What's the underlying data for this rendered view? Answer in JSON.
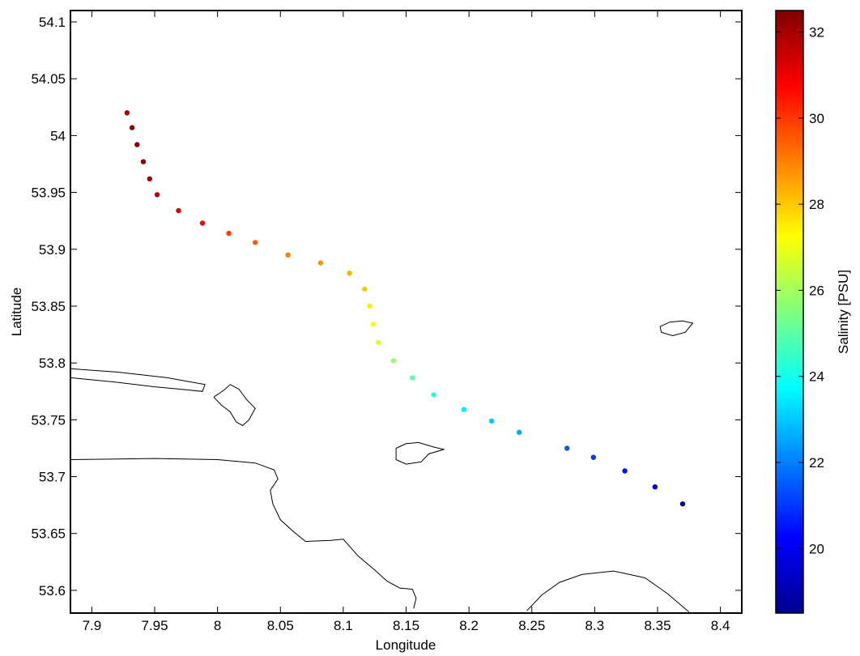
{
  "chart_data": {
    "type": "scatter",
    "title": "",
    "xlabel": "Longitude",
    "ylabel": "Latitude",
    "xlim": [
      7.883,
      8.417
    ],
    "ylim": [
      53.58,
      54.11
    ],
    "x_ticks": [
      7.9,
      7.95,
      8,
      8.05,
      8.1,
      8.15,
      8.2,
      8.25,
      8.3,
      8.35,
      8.4
    ],
    "x_tick_labels": [
      "7.9",
      "7.95",
      "8",
      "8.05",
      "8.1",
      "8.15",
      "8.2",
      "8.25",
      "8.3",
      "8.35",
      "8.4"
    ],
    "y_ticks": [
      53.6,
      53.65,
      53.7,
      53.75,
      53.8,
      53.85,
      53.9,
      53.95,
      54,
      54.05,
      54.1
    ],
    "y_tick_labels": [
      "53.6",
      "53.65",
      "53.7",
      "53.75",
      "53.8",
      "53.85",
      "53.9",
      "53.95",
      "54",
      "54.05",
      "54.1"
    ],
    "grid": false,
    "colorbar": {
      "label": "Salinity [PSU]",
      "range": [
        18.5,
        32.5
      ],
      "colormap": "jet",
      "ticks": [
        20,
        22,
        24,
        26,
        28,
        30,
        32
      ],
      "tick_labels": [
        "20",
        "22",
        "24",
        "26",
        "28",
        "30",
        "32"
      ]
    },
    "points": [
      {
        "x": 7.928,
        "y": 54.02,
        "salinity": 32.0
      },
      {
        "x": 7.932,
        "y": 54.007,
        "salinity": 32.3
      },
      {
        "x": 7.936,
        "y": 53.992,
        "salinity": 32.4
      },
      {
        "x": 7.941,
        "y": 53.977,
        "salinity": 32.3
      },
      {
        "x": 7.946,
        "y": 53.962,
        "salinity": 32.0
      },
      {
        "x": 7.952,
        "y": 53.948,
        "salinity": 31.7
      },
      {
        "x": 7.969,
        "y": 53.934,
        "salinity": 31.3
      },
      {
        "x": 7.988,
        "y": 53.923,
        "salinity": 30.8
      },
      {
        "x": 8.009,
        "y": 53.914,
        "salinity": 30.0
      },
      {
        "x": 8.03,
        "y": 53.906,
        "salinity": 29.5
      },
      {
        "x": 8.056,
        "y": 53.895,
        "salinity": 29.0
      },
      {
        "x": 8.082,
        "y": 53.888,
        "salinity": 28.7
      },
      {
        "x": 8.105,
        "y": 53.879,
        "salinity": 28.3
      },
      {
        "x": 8.117,
        "y": 53.865,
        "salinity": 28.0
      },
      {
        "x": 8.121,
        "y": 53.85,
        "salinity": 27.5
      },
      {
        "x": 8.124,
        "y": 53.834,
        "salinity": 27.1
      },
      {
        "x": 8.128,
        "y": 53.818,
        "salinity": 26.7
      },
      {
        "x": 8.14,
        "y": 53.802,
        "salinity": 25.8
      },
      {
        "x": 8.155,
        "y": 53.787,
        "salinity": 25.1
      },
      {
        "x": 8.172,
        "y": 53.772,
        "salinity": 24.3
      },
      {
        "x": 8.196,
        "y": 53.759,
        "salinity": 23.5
      },
      {
        "x": 8.218,
        "y": 53.749,
        "salinity": 23.0
      },
      {
        "x": 8.24,
        "y": 53.739,
        "salinity": 22.6
      },
      {
        "x": 8.278,
        "y": 53.725,
        "salinity": 21.5
      },
      {
        "x": 8.299,
        "y": 53.717,
        "salinity": 21.0
      },
      {
        "x": 8.324,
        "y": 53.705,
        "salinity": 20.5
      },
      {
        "x": 8.348,
        "y": 53.691,
        "salinity": 19.8
      },
      {
        "x": 8.37,
        "y": 53.676,
        "salinity": 18.8
      }
    ],
    "coastlines": [
      [
        [
          7.883,
          53.795
        ],
        [
          7.92,
          53.792
        ],
        [
          7.96,
          53.787
        ],
        [
          7.98,
          53.783
        ],
        [
          7.99,
          53.781
        ],
        [
          7.988,
          53.775
        ],
        [
          7.97,
          53.777
        ],
        [
          7.95,
          53.779
        ],
        [
          7.92,
          53.783
        ],
        [
          7.883,
          53.787
        ]
      ],
      [
        [
          7.997,
          53.77
        ],
        [
          8.005,
          53.776
        ],
        [
          8.01,
          53.781
        ],
        [
          8.017,
          53.777
        ],
        [
          8.023,
          53.768
        ],
        [
          8.03,
          53.76
        ],
        [
          8.025,
          53.75
        ],
        [
          8.02,
          53.745
        ],
        [
          8.015,
          53.748
        ],
        [
          8.01,
          53.757
        ],
        [
          8.003,
          53.763
        ],
        [
          7.997,
          53.77
        ]
      ],
      [
        [
          8.142,
          53.725
        ],
        [
          8.15,
          53.729
        ],
        [
          8.16,
          53.73
        ],
        [
          8.172,
          53.726
        ],
        [
          8.18,
          53.724
        ],
        [
          8.168,
          53.72
        ],
        [
          8.162,
          53.713
        ],
        [
          8.15,
          53.711
        ],
        [
          8.142,
          53.715
        ],
        [
          8.142,
          53.725
        ]
      ],
      [
        [
          8.352,
          53.832
        ],
        [
          8.36,
          53.836
        ],
        [
          8.37,
          53.837
        ],
        [
          8.378,
          53.835
        ],
        [
          8.372,
          53.827
        ],
        [
          8.362,
          53.824
        ],
        [
          8.353,
          53.827
        ],
        [
          8.352,
          53.832
        ]
      ],
      [
        [
          7.883,
          53.715
        ],
        [
          7.95,
          53.716
        ],
        [
          8.0,
          53.715
        ],
        [
          8.03,
          53.712
        ],
        [
          8.045,
          53.706
        ],
        [
          8.048,
          53.698
        ],
        [
          8.042,
          53.688
        ],
        [
          8.044,
          53.676
        ],
        [
          8.05,
          53.662
        ],
        [
          8.06,
          53.652
        ],
        [
          8.07,
          53.643
        ],
        [
          8.09,
          53.644
        ],
        [
          8.1,
          53.645
        ],
        [
          8.112,
          53.63
        ],
        [
          8.125,
          53.618
        ],
        [
          8.135,
          53.608
        ],
        [
          8.145,
          53.602
        ],
        [
          8.155,
          53.601
        ],
        [
          8.158,
          53.593
        ],
        [
          8.156,
          53.584
        ]
      ],
      [
        [
          8.246,
          53.582
        ],
        [
          8.258,
          53.596
        ],
        [
          8.272,
          53.607
        ],
        [
          8.29,
          53.614
        ],
        [
          8.315,
          53.617
        ],
        [
          8.34,
          53.611
        ],
        [
          8.358,
          53.597
        ],
        [
          8.375,
          53.581
        ]
      ]
    ]
  }
}
